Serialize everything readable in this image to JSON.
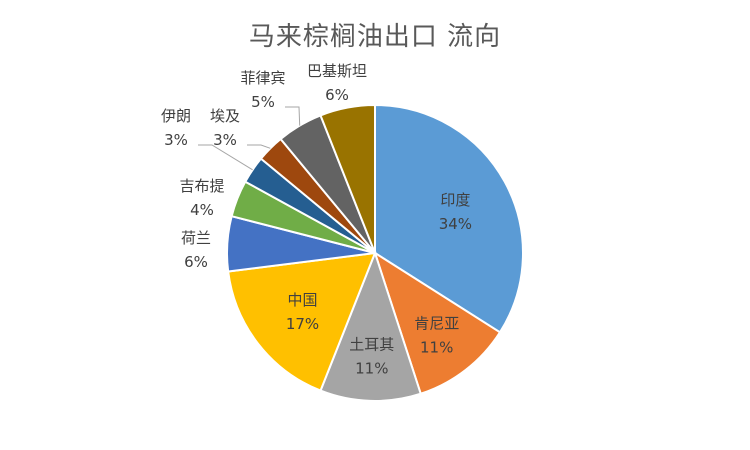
{
  "chart_data": {
    "type": "pie",
    "title": "马来棕榈油出口 流向",
    "slices": [
      {
        "name": "印度",
        "value": 34,
        "label": "34%",
        "color": "#5B9BD5"
      },
      {
        "name": "肯尼亚",
        "value": 11,
        "label": "11%",
        "color": "#ED7D31"
      },
      {
        "name": "土耳其",
        "value": 11,
        "label": "11%",
        "color": "#A5A5A5"
      },
      {
        "name": "中国",
        "value": 17,
        "label": "17%",
        "color": "#FFC000"
      },
      {
        "name": "荷兰",
        "value": 6,
        "label": "6%",
        "color": "#4472C4"
      },
      {
        "name": "吉布提",
        "value": 4,
        "label": "4%",
        "color": "#70AD47"
      },
      {
        "name": "伊朗",
        "value": 3,
        "label": "3%",
        "color": "#255E91"
      },
      {
        "name": "埃及",
        "value": 3,
        "label": "3%",
        "color": "#9E480E"
      },
      {
        "name": "菲律宾",
        "value": 5,
        "label": "5%",
        "color": "#636363"
      },
      {
        "name": "巴基斯坦",
        "value": 6,
        "label": "6%",
        "color": "#997300"
      }
    ],
    "legend": "none"
  }
}
